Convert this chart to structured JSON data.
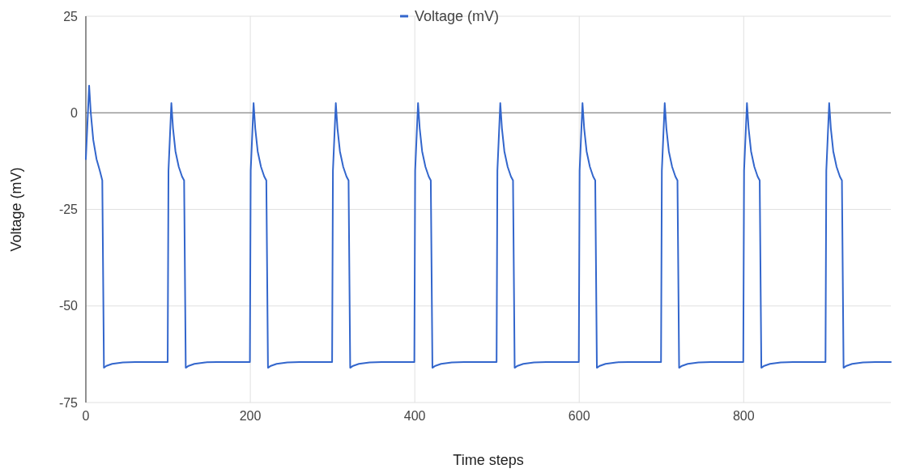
{
  "chart_data": {
    "type": "line",
    "xlabel": "Time steps",
    "ylabel": "Voltage  (mV)",
    "xlim": [
      0,
      979
    ],
    "xticks": [
      0,
      200,
      400,
      600,
      800
    ],
    "ylim": [
      -75,
      25
    ],
    "yticks": [
      -75,
      -50,
      -25,
      0,
      25
    ],
    "grid": true,
    "legend": "top",
    "marker": "none",
    "line_style": "solid",
    "ref_lines": [
      {
        "axis": "y",
        "value": 0,
        "color": "#757575"
      }
    ],
    "series": [
      {
        "name": "Voltage (mV)",
        "color": "#3366cc",
        "x": [
          0,
          4,
          6,
          9,
          13,
          17,
          20,
          22,
          25,
          32,
          45,
          60,
          99.5,
          100.5,
          104,
          106,
          109,
          113,
          117,
          119.5,
          121.5,
          125,
          132,
          145,
          160,
          199.5,
          200.5,
          204,
          206,
          209,
          213,
          217,
          219.5,
          221.5,
          225,
          232,
          245,
          260,
          299.5,
          300.5,
          304,
          306,
          309,
          313,
          317,
          319.5,
          321.5,
          325,
          332,
          345,
          360,
          399.5,
          400.5,
          404,
          406,
          409,
          413,
          417,
          419.5,
          421.5,
          425,
          432,
          445,
          460,
          499.5,
          500.5,
          504,
          506,
          509,
          513,
          517,
          519.5,
          521.5,
          525,
          532,
          545,
          560,
          599.5,
          600.5,
          604,
          606,
          609,
          613,
          617,
          619.5,
          621.5,
          625,
          632,
          645,
          660,
          699.5,
          700.5,
          704,
          706,
          709,
          713,
          717,
          719.5,
          721.5,
          725,
          732,
          745,
          760,
          799.5,
          800.5,
          804,
          806,
          809,
          813,
          817,
          819.5,
          821.5,
          825,
          832,
          845,
          860,
          899.5,
          900.5,
          904,
          906,
          909,
          913,
          917,
          919.5,
          921.5,
          925,
          932,
          945,
          960,
          979
        ],
        "values": [
          -12,
          7,
          0,
          -7,
          -12,
          -15,
          -17.5,
          -66,
          -65.5,
          -65,
          -64.6,
          -64.5,
          -64.5,
          -15,
          2.5,
          -4,
          -10,
          -14,
          -16.5,
          -17.5,
          -66,
          -65.5,
          -65,
          -64.6,
          -64.5,
          -64.5,
          -15,
          2.5,
          -4,
          -10,
          -14,
          -16.5,
          -17.5,
          -66,
          -65.5,
          -65,
          -64.6,
          -64.5,
          -64.5,
          -15,
          2.5,
          -4,
          -10,
          -14,
          -16.5,
          -17.5,
          -66,
          -65.5,
          -65,
          -64.6,
          -64.5,
          -64.5,
          -15,
          2.5,
          -4,
          -10,
          -14,
          -16.5,
          -17.5,
          -66,
          -65.5,
          -65,
          -64.6,
          -64.5,
          -64.5,
          -15,
          2.5,
          -4,
          -10,
          -14,
          -16.5,
          -17.5,
          -66,
          -65.5,
          -65,
          -64.6,
          -64.5,
          -64.5,
          -15,
          2.5,
          -4,
          -10,
          -14,
          -16.5,
          -17.5,
          -66,
          -65.5,
          -65,
          -64.6,
          -64.5,
          -64.5,
          -15,
          2.5,
          -4,
          -10,
          -14,
          -16.5,
          -17.5,
          -66,
          -65.5,
          -65,
          -64.6,
          -64.5,
          -64.5,
          -15,
          2.5,
          -4,
          -10,
          -14,
          -16.5,
          -17.5,
          -66,
          -65.5,
          -65,
          -64.6,
          -64.5,
          -64.5,
          -15,
          2.5,
          -4,
          -10,
          -14,
          -16.5,
          -17.5,
          -66,
          -65.5,
          -65,
          -64.6,
          -64.5,
          -64.5
        ]
      }
    ]
  }
}
